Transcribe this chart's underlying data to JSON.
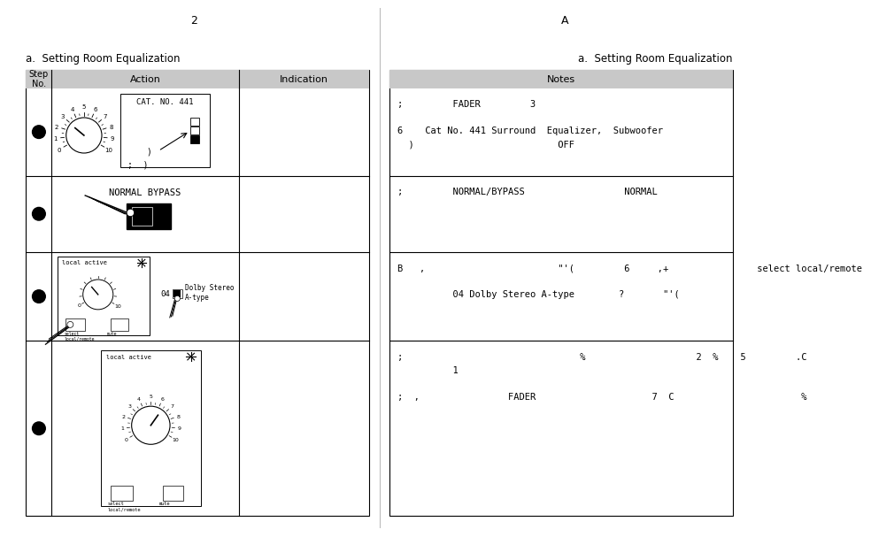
{
  "page_width": 10.8,
  "page_height": 7.63,
  "bg_color": "#ffffff",
  "page_num_left": "2",
  "page_num_right": "A",
  "left_subtitle": "a.  Setting Room Equalization",
  "right_subtitle": "a.  Setting Room Equalization",
  "header_bg": "#c8c8c8",
  "left_col1_header": "Step\nNo.",
  "left_col2_header": "Action",
  "left_col3_header": "Indication",
  "right_col_header": "Notes",
  "row1_note_lines": [
    ";         FADER         3",
    "",
    "6    Cat No. 441 Surround  Equalizer,  Subwoofer",
    "  )                          OFF"
  ],
  "row2_note_lines": [
    ";         NORMAL/BYPASS                  NORMAL"
  ],
  "row3_note_lines": [
    "B   ,                        \"'(         6     ,+                select local/remote",
    "",
    "          04 Dolby Stereo A-type        ?       \"'("
  ],
  "row4_note_lines": [
    ";                                %                    2  %    5         .C",
    "          1",
    "",
    ";  ,                FADER                     7  C                       %"
  ]
}
